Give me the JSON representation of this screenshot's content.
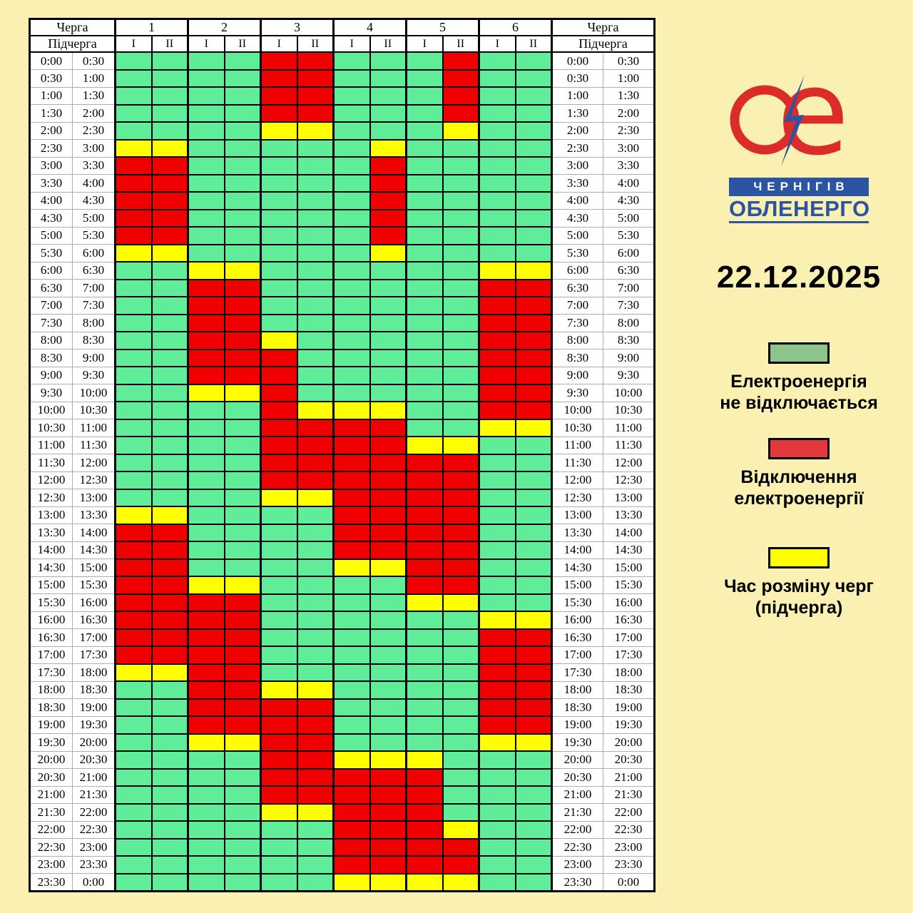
{
  "chart_data": {
    "type": "heatmap",
    "title_date": "22.12.2025",
    "columns": {
      "queue_label": "Черга",
      "subqueue_label": "Підчерга",
      "groups": [
        "1",
        "2",
        "3",
        "4",
        "5",
        "6"
      ],
      "subgroups": [
        "I",
        "II"
      ]
    },
    "cell_states": {
      "G": "Електроенергія не відключається",
      "R": "Відключення електроенергії",
      "Y": "Час розміну черг (підчерга)"
    },
    "rows": [
      {
        "start": "0:00",
        "end": "0:30",
        "cells": "GGGGRRGGGRGG"
      },
      {
        "start": "0:30",
        "end": "1:00",
        "cells": "GGGGRRGGGRGG"
      },
      {
        "start": "1:00",
        "end": "1:30",
        "cells": "GGGGRRGGGRGG"
      },
      {
        "start": "1:30",
        "end": "2:00",
        "cells": "GGGGRRGGGRGG"
      },
      {
        "start": "2:00",
        "end": "2:30",
        "cells": "GGGGYYGGGYGG"
      },
      {
        "start": "2:30",
        "end": "3:00",
        "cells": "YYGGGGGYGGGG"
      },
      {
        "start": "3:00",
        "end": "3:30",
        "cells": "RRGGGGGRGGGG"
      },
      {
        "start": "3:30",
        "end": "4:00",
        "cells": "RRGGGGGRGGGG"
      },
      {
        "start": "4:00",
        "end": "4:30",
        "cells": "RRGGGGGRGGGG"
      },
      {
        "start": "4:30",
        "end": "5:00",
        "cells": "RRGGGGGRGGGG"
      },
      {
        "start": "5:00",
        "end": "5:30",
        "cells": "RRGGGGGRGGGG"
      },
      {
        "start": "5:30",
        "end": "6:00",
        "cells": "YYGGGGGYGGGG"
      },
      {
        "start": "6:00",
        "end": "6:30",
        "cells": "GGYYGGGGGGYY"
      },
      {
        "start": "6:30",
        "end": "7:00",
        "cells": "GGRRGGGGGGRR"
      },
      {
        "start": "7:00",
        "end": "7:30",
        "cells": "GGRRGGGGGGRR"
      },
      {
        "start": "7:30",
        "end": "8:00",
        "cells": "GGRRGGGGGGRR"
      },
      {
        "start": "8:00",
        "end": "8:30",
        "cells": "GGRRYGGGGGRR"
      },
      {
        "start": "8:30",
        "end": "9:00",
        "cells": "GGRRRGGGGGRR"
      },
      {
        "start": "9:00",
        "end": "9:30",
        "cells": "GGRRRGGGGGRR"
      },
      {
        "start": "9:30",
        "end": "10:00",
        "cells": "GGYYRGGGGGRR"
      },
      {
        "start": "10:00",
        "end": "10:30",
        "cells": "GGGGRYYYGGRR"
      },
      {
        "start": "10:30",
        "end": "11:00",
        "cells": "GGGGRRRRGGYY"
      },
      {
        "start": "11:00",
        "end": "11:30",
        "cells": "GGGGRRRRYYGG"
      },
      {
        "start": "11:30",
        "end": "12:00",
        "cells": "GGGGRRRRRRGG"
      },
      {
        "start": "12:00",
        "end": "12:30",
        "cells": "GGGGRRRRRRGG"
      },
      {
        "start": "12:30",
        "end": "13:00",
        "cells": "GGGGYYRRRRGG"
      },
      {
        "start": "13:00",
        "end": "13:30",
        "cells": "YYGGGGRRRRGG"
      },
      {
        "start": "13:30",
        "end": "14:00",
        "cells": "RRGGGGRRRRGG"
      },
      {
        "start": "14:00",
        "end": "14:30",
        "cells": "RRGGGGRRRRGG"
      },
      {
        "start": "14:30",
        "end": "15:00",
        "cells": "RRGGGGYYRRGG"
      },
      {
        "start": "15:00",
        "end": "15:30",
        "cells": "RRYYGGGGRRGG"
      },
      {
        "start": "15:30",
        "end": "16:00",
        "cells": "RRRRGGGGYYGG"
      },
      {
        "start": "16:00",
        "end": "16:30",
        "cells": "RRRRGGGGGGYY"
      },
      {
        "start": "16:30",
        "end": "17:00",
        "cells": "RRRRGGGGGGRR"
      },
      {
        "start": "17:00",
        "end": "17:30",
        "cells": "RRRRGGGGGGRR"
      },
      {
        "start": "17:30",
        "end": "18:00",
        "cells": "YYRRGGGGGGRR"
      },
      {
        "start": "18:00",
        "end": "18:30",
        "cells": "GGRRYYGGGGRR"
      },
      {
        "start": "18:30",
        "end": "19:00",
        "cells": "GGRRRRGGGGRR"
      },
      {
        "start": "19:00",
        "end": "19:30",
        "cells": "GGRRRRGGGGRR"
      },
      {
        "start": "19:30",
        "end": "20:00",
        "cells": "GGYYRRGGGGYY"
      },
      {
        "start": "20:00",
        "end": "20:30",
        "cells": "GGGGRRYYYGGG"
      },
      {
        "start": "20:30",
        "end": "21:00",
        "cells": "GGGGRRRRRGGG"
      },
      {
        "start": "21:00",
        "end": "21:30",
        "cells": "GGGGRRRRRGGG"
      },
      {
        "start": "21:30",
        "end": "22:00",
        "cells": "GGGGYYRRRGGG"
      },
      {
        "start": "22:00",
        "end": "22:30",
        "cells": "GGGGGGRRRYGG"
      },
      {
        "start": "22:30",
        "end": "23:00",
        "cells": "GGGGGGRRRRGG"
      },
      {
        "start": "23:00",
        "end": "23:30",
        "cells": "GGGGGGRRRRGG"
      },
      {
        "start": "23:30",
        "end": "0:00",
        "cells": "GGGGGGYYYYGG"
      }
    ],
    "legend": {
      "items": [
        {
          "name": "no-outage",
          "swatch_color": "#8CC48C",
          "label_lines": [
            "Електроенергія",
            "не відключається"
          ]
        },
        {
          "name": "outage",
          "swatch_color": "#E4393C",
          "label_lines": [
            "Відключення",
            "електроенергії"
          ]
        },
        {
          "name": "queue-exchange",
          "swatch_color": "#FFFF00",
          "label_lines": [
            "Час розміну черг",
            "(підчерга)"
          ]
        }
      ]
    }
  },
  "date": "22.12.2025",
  "logo": {
    "line1": "ЧЕРНІГІВ",
    "line2": "ОБЛЕНЕРГО",
    "red": "#DC2B2B",
    "blue": "#2B55A3"
  },
  "colors": {
    "background": "#F9F0B2",
    "cell": {
      "G": "#5FED99",
      "R": "#F00000",
      "Y": "#FFFF00"
    },
    "grid_black": "#000000",
    "time_grid_gray": "#ADADAD"
  }
}
